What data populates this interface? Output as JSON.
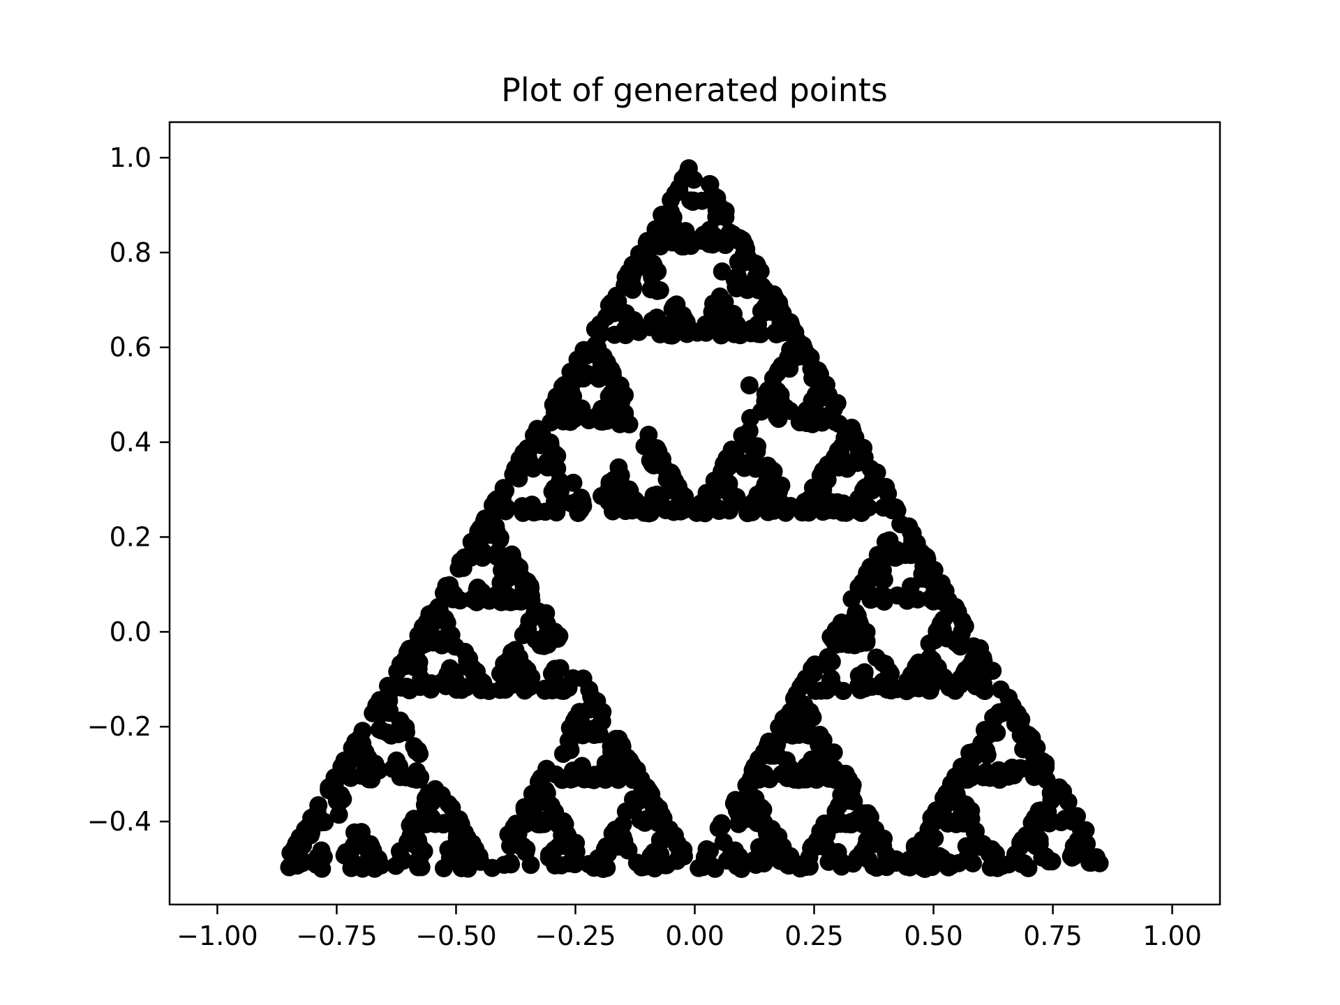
{
  "chart_data": {
    "type": "scatter",
    "title": "Plot of generated points",
    "xlabel": "",
    "ylabel": "",
    "xlim": [
      -1.1,
      1.1
    ],
    "ylim": [
      -0.575,
      1.075
    ],
    "x_ticks": [
      -1.0,
      -0.75,
      -0.5,
      -0.25,
      0.0,
      0.25,
      0.5,
      0.75,
      1.0
    ],
    "x_tick_labels": [
      "−1.00",
      "−0.75",
      "−0.50",
      "−0.25",
      "0.00",
      "0.25",
      "0.50",
      "0.75",
      "1.00"
    ],
    "y_ticks": [
      -0.4,
      -0.2,
      0.0,
      0.2,
      0.4,
      0.6,
      0.8,
      1.0
    ],
    "y_tick_labels": [
      "−0.4",
      "−0.2",
      "0.0",
      "0.2",
      "0.4",
      "0.6",
      "0.8",
      "1.0"
    ],
    "grid": false,
    "marker_color": "#000000",
    "generator": {
      "method": "chaos_game",
      "vertices": [
        [
          0.0,
          1.0
        ],
        [
          -0.866,
          -0.5
        ],
        [
          0.866,
          -0.5
        ]
      ],
      "start": [
        0.1145,
        0.52
      ],
      "point_count": 2000
    },
    "series": [
      {
        "values": []
      }
    ]
  }
}
